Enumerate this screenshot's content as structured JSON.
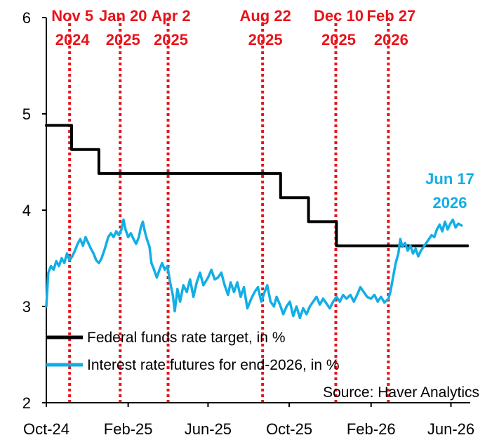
{
  "chart_data": {
    "type": "line",
    "ylim": [
      2,
      6
    ],
    "xlim": [
      "2024-10-01",
      "2026-06-30"
    ],
    "yticks": [
      "2",
      "3",
      "4",
      "5",
      "6"
    ],
    "xticks": [
      {
        "date": "2024-10-01",
        "label": "Oct-24"
      },
      {
        "date": "2025-02-01",
        "label": "Feb-25"
      },
      {
        "date": "2025-06-01",
        "label": "Jun-25"
      },
      {
        "date": "2025-10-01",
        "label": "Oct-25"
      },
      {
        "date": "2026-02-01",
        "label": "Feb-26"
      },
      {
        "date": "2026-06-01",
        "label": "Jun-26"
      }
    ],
    "grid": false,
    "legend_position": "bottom-left",
    "legend": [
      {
        "label": "Federal funds rate target, in %",
        "color": "#000000"
      },
      {
        "label": "Interest rate futures for end-2026, in %",
        "color": "#12aee6"
      }
    ],
    "source": "Source: Haver Analytics",
    "series": [
      {
        "name": "Federal funds rate target, in %",
        "color": "#000000",
        "step": true,
        "points": [
          [
            "2024-10-01",
            4.88
          ],
          [
            "2024-11-08",
            4.63
          ],
          [
            "2024-12-19",
            4.38
          ],
          [
            "2025-09-18",
            4.13
          ],
          [
            "2025-10-30",
            3.88
          ],
          [
            "2025-12-11",
            3.63
          ],
          [
            "2026-06-26",
            3.63
          ]
        ]
      },
      {
        "name": "Interest rate futures for end-2026, in %",
        "color": "#12aee6",
        "points": [
          [
            "2024-10-01",
            3.0
          ],
          [
            "2024-10-04",
            3.35
          ],
          [
            "2024-10-08",
            3.42
          ],
          [
            "2024-10-12",
            3.38
          ],
          [
            "2024-10-16",
            3.47
          ],
          [
            "2024-10-20",
            3.42
          ],
          [
            "2024-10-24",
            3.5
          ],
          [
            "2024-10-28",
            3.45
          ],
          [
            "2024-11-01",
            3.55
          ],
          [
            "2024-11-05",
            3.48
          ],
          [
            "2024-11-09",
            3.52
          ],
          [
            "2024-11-13",
            3.58
          ],
          [
            "2024-11-17",
            3.65
          ],
          [
            "2024-11-21",
            3.7
          ],
          [
            "2024-11-25",
            3.63
          ],
          [
            "2024-11-29",
            3.72
          ],
          [
            "2024-12-03",
            3.66
          ],
          [
            "2024-12-07",
            3.6
          ],
          [
            "2024-12-11",
            3.55
          ],
          [
            "2024-12-15",
            3.48
          ],
          [
            "2024-12-19",
            3.45
          ],
          [
            "2024-12-23",
            3.5
          ],
          [
            "2024-12-28",
            3.6
          ],
          [
            "2025-01-02",
            3.72
          ],
          [
            "2025-01-06",
            3.76
          ],
          [
            "2025-01-10",
            3.72
          ],
          [
            "2025-01-14",
            3.78
          ],
          [
            "2025-01-18",
            3.74
          ],
          [
            "2025-01-22",
            3.8
          ],
          [
            "2025-01-25",
            3.9
          ],
          [
            "2025-01-28",
            3.8
          ],
          [
            "2025-02-01",
            3.72
          ],
          [
            "2025-02-05",
            3.76
          ],
          [
            "2025-02-09",
            3.7
          ],
          [
            "2025-02-13",
            3.65
          ],
          [
            "2025-02-17",
            3.72
          ],
          [
            "2025-02-20",
            3.82
          ],
          [
            "2025-02-23",
            3.88
          ],
          [
            "2025-02-26",
            3.78
          ],
          [
            "2025-03-01",
            3.7
          ],
          [
            "2025-03-05",
            3.62
          ],
          [
            "2025-03-08",
            3.45
          ],
          [
            "2025-03-12",
            3.38
          ],
          [
            "2025-03-16",
            3.3
          ],
          [
            "2025-03-20",
            3.38
          ],
          [
            "2025-03-24",
            3.45
          ],
          [
            "2025-03-28",
            3.38
          ],
          [
            "2025-04-01",
            3.42
          ],
          [
            "2025-04-05",
            3.25
          ],
          [
            "2025-04-09",
            3.12
          ],
          [
            "2025-04-12",
            2.95
          ],
          [
            "2025-04-16",
            3.18
          ],
          [
            "2025-04-20",
            3.05
          ],
          [
            "2025-04-25",
            3.22
          ],
          [
            "2025-04-30",
            3.15
          ],
          [
            "2025-05-05",
            3.28
          ],
          [
            "2025-05-10",
            3.1
          ],
          [
            "2025-05-15",
            3.25
          ],
          [
            "2025-05-20",
            3.35
          ],
          [
            "2025-05-25",
            3.22
          ],
          [
            "2025-06-01",
            3.3
          ],
          [
            "2025-06-06",
            3.38
          ],
          [
            "2025-06-11",
            3.28
          ],
          [
            "2025-06-16",
            3.3
          ],
          [
            "2025-06-21",
            3.35
          ],
          [
            "2025-06-26",
            3.22
          ],
          [
            "2025-07-01",
            3.12
          ],
          [
            "2025-07-05",
            3.25
          ],
          [
            "2025-07-10",
            3.15
          ],
          [
            "2025-07-15",
            3.25
          ],
          [
            "2025-07-20",
            3.1
          ],
          [
            "2025-07-25",
            3.2
          ],
          [
            "2025-07-30",
            2.98
          ],
          [
            "2025-08-05",
            3.08
          ],
          [
            "2025-08-10",
            3.15
          ],
          [
            "2025-08-15",
            3.2
          ],
          [
            "2025-08-20",
            3.05
          ],
          [
            "2025-08-25",
            3.15
          ],
          [
            "2025-08-29",
            3.22
          ],
          [
            "2025-09-03",
            3.05
          ],
          [
            "2025-09-08",
            3.0
          ],
          [
            "2025-09-12",
            3.1
          ],
          [
            "2025-09-17",
            3.02
          ],
          [
            "2025-09-22",
            2.92
          ],
          [
            "2025-09-27",
            3.0
          ],
          [
            "2025-10-02",
            3.05
          ],
          [
            "2025-10-07",
            2.9
          ],
          [
            "2025-10-12",
            3.0
          ],
          [
            "2025-10-17",
            2.88
          ],
          [
            "2025-10-22",
            2.98
          ],
          [
            "2025-10-27",
            2.92
          ],
          [
            "2025-11-01",
            3.0
          ],
          [
            "2025-11-06",
            3.05
          ],
          [
            "2025-11-11",
            3.1
          ],
          [
            "2025-11-16",
            3.02
          ],
          [
            "2025-11-21",
            3.08
          ],
          [
            "2025-11-26",
            3.03
          ],
          [
            "2025-12-01",
            2.98
          ],
          [
            "2025-12-06",
            3.05
          ],
          [
            "2025-12-11",
            3.1
          ],
          [
            "2025-12-16",
            3.05
          ],
          [
            "2025-12-21",
            3.12
          ],
          [
            "2025-12-26",
            3.08
          ],
          [
            "2026-01-01",
            3.12
          ],
          [
            "2026-01-06",
            3.05
          ],
          [
            "2026-01-11",
            3.12
          ],
          [
            "2026-01-16",
            3.2
          ],
          [
            "2026-01-21",
            3.15
          ],
          [
            "2026-01-26",
            3.1
          ],
          [
            "2026-02-01",
            3.08
          ],
          [
            "2026-02-06",
            3.12
          ],
          [
            "2026-02-11",
            3.05
          ],
          [
            "2026-02-16",
            3.1
          ],
          [
            "2026-02-21",
            3.04
          ],
          [
            "2026-02-27",
            3.08
          ],
          [
            "2026-03-02",
            3.15
          ],
          [
            "2026-03-06",
            3.3
          ],
          [
            "2026-03-10",
            3.45
          ],
          [
            "2026-03-14",
            3.55
          ],
          [
            "2026-03-17",
            3.7
          ],
          [
            "2026-03-20",
            3.62
          ],
          [
            "2026-03-24",
            3.66
          ],
          [
            "2026-03-28",
            3.58
          ],
          [
            "2026-04-01",
            3.63
          ],
          [
            "2026-04-05",
            3.55
          ],
          [
            "2026-04-09",
            3.6
          ],
          [
            "2026-04-13",
            3.52
          ],
          [
            "2026-04-17",
            3.58
          ],
          [
            "2026-04-21",
            3.62
          ],
          [
            "2026-04-25",
            3.66
          ],
          [
            "2026-04-29",
            3.7
          ],
          [
            "2026-05-03",
            3.74
          ],
          [
            "2026-05-07",
            3.72
          ],
          [
            "2026-05-11",
            3.8
          ],
          [
            "2026-05-15",
            3.85
          ],
          [
            "2026-05-19",
            3.78
          ],
          [
            "2026-05-23",
            3.88
          ],
          [
            "2026-05-27",
            3.8
          ],
          [
            "2026-05-31",
            3.86
          ],
          [
            "2026-06-04",
            3.9
          ],
          [
            "2026-06-08",
            3.82
          ],
          [
            "2026-06-12",
            3.86
          ],
          [
            "2026-06-17",
            3.84
          ]
        ]
      }
    ],
    "event_lines": [
      {
        "date": "2024-11-05",
        "line1": "Nov 5",
        "line2": "2024"
      },
      {
        "date": "2025-01-20",
        "line1": "Jan 20",
        "line2": "2025"
      },
      {
        "date": "2025-04-02",
        "line1": "Apr 2",
        "line2": "2025"
      },
      {
        "date": "2025-08-22",
        "line1": "Aug 22",
        "line2": "2025"
      },
      {
        "date": "2025-12-10",
        "line1": "Dec 10",
        "line2": "2025"
      },
      {
        "date": "2026-02-27",
        "line1": "Feb 27",
        "line2": "2026"
      }
    ],
    "event_line_color": "#e8141b",
    "callout": {
      "line1": "Jun 17",
      "line2": "2026",
      "color": "#12aee6"
    }
  }
}
